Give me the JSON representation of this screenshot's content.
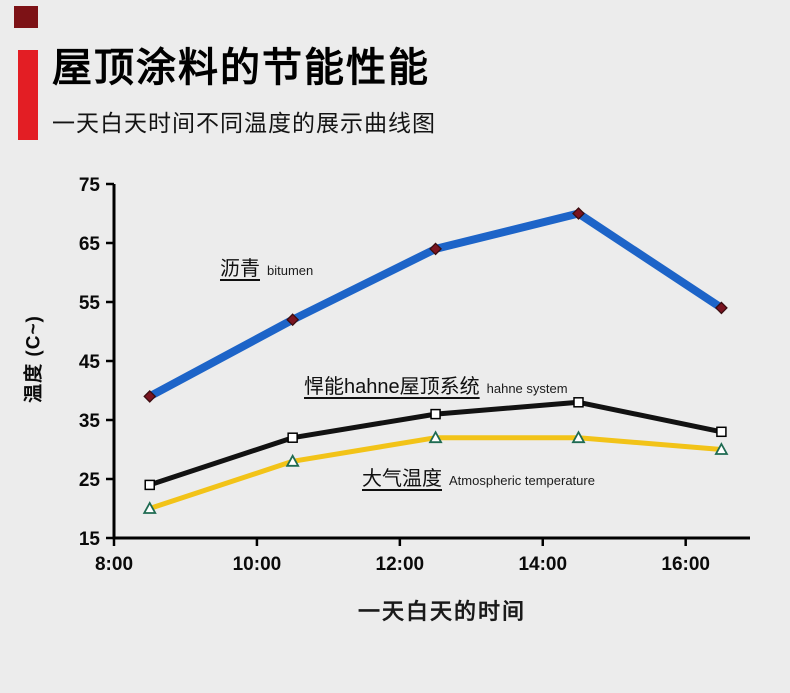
{
  "page": {
    "background": "#ececec"
  },
  "header": {
    "title": "屋顶涂料的节能性能",
    "subtitle": "一天白天时间不同温度的展示曲线图",
    "accent_color": "#e31e24",
    "flag_color": "#7d1216"
  },
  "chart_data": {
    "type": "line",
    "title": "屋顶涂料的节能性能",
    "xlabel": "一天白天的时间",
    "ylabel": "温度  (C~)",
    "x_ticks": [
      "8:00",
      "10:00",
      "12:00",
      "14:00",
      "16:00"
    ],
    "x_tick_hours": [
      8,
      10,
      12,
      14,
      16
    ],
    "y_ticks": [
      75,
      65,
      55,
      45,
      35,
      25,
      15
    ],
    "xlim": [
      8,
      16.9
    ],
    "ylim": [
      15,
      75
    ],
    "x_hours": [
      8.5,
      10.5,
      12.5,
      14.5,
      16.5
    ],
    "x_point_times": [
      "8:30",
      "10:30",
      "12:30",
      "14:30",
      "16:30"
    ],
    "grid": false,
    "legend_position": "inline-annotations",
    "series": [
      {
        "id": "bitumen",
        "name": "沥青",
        "name_en": "bitumen",
        "color": "#1d64c8",
        "width": 8,
        "marker": "diamond",
        "marker_color": "#7a1420",
        "marker_edge": "#3a0c10",
        "values": [
          39,
          52,
          64,
          70,
          54
        ]
      },
      {
        "id": "hahne-roof-system",
        "name": "悍能hahne屋顶系统",
        "name_en": "hahne system",
        "color": "#121212",
        "width": 5,
        "marker": "square",
        "marker_color": "#ffffff",
        "marker_edge": "#000000",
        "values": [
          24,
          32,
          36,
          38,
          33
        ]
      },
      {
        "id": "atmospheric-temperature",
        "name": "大气温度",
        "name_en": "Atmospheric temperature",
        "color": "#f2c318",
        "width": 5,
        "marker": "triangle",
        "marker_color": "#ffffff",
        "marker_edge": "#1f6b52",
        "values": [
          20,
          28,
          32,
          32,
          30
        ]
      }
    ]
  }
}
